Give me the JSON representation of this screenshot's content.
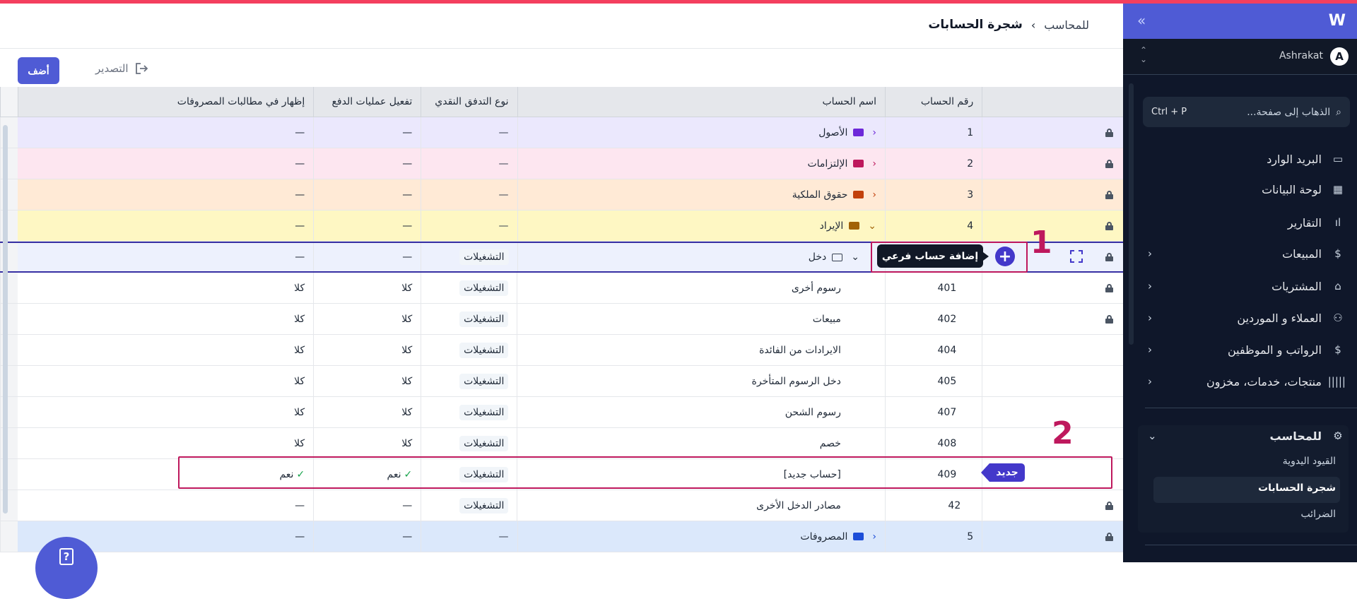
{
  "header": {
    "breadcrumb_parent": "للمحاسب",
    "breadcrumb_separator": "›",
    "page_title": "شجرة الحسابات"
  },
  "toolbar": {
    "add_label": "أضف",
    "export_label": "التصدير",
    "export_icon": "export-icon"
  },
  "table": {
    "columns": [
      "",
      "رقم الحساب",
      "اسم الحساب",
      "نوع التدفق النقدي",
      "تفعيل عمليات الدفع",
      "إظهار في مطالبات المصروفات"
    ],
    "rows": [
      {
        "locked": true,
        "number": "1",
        "name": "الأصول",
        "level": "parent",
        "expanded": false,
        "folder_color": "#6d28d9",
        "bg": "#ebe8fd",
        "flow": "—",
        "payments": "—",
        "expense": "—"
      },
      {
        "locked": true,
        "number": "2",
        "name": "الإلتزامات",
        "level": "parent",
        "expanded": false,
        "folder_color": "#be185d",
        "bg": "#fde6f0",
        "flow": "—",
        "payments": "—",
        "expense": "—"
      },
      {
        "locked": true,
        "number": "3",
        "name": "حقوق الملكية",
        "level": "parent",
        "expanded": false,
        "folder_color": "#c2410c",
        "bg": "#ffead6",
        "flow": "—",
        "payments": "—",
        "expense": "—"
      },
      {
        "locked": true,
        "number": "4",
        "name": "الإيراد",
        "level": "parent",
        "expanded": true,
        "folder_color": "#a16207",
        "bg": "#fef7c3",
        "flow": "—",
        "payments": "—",
        "expense": "—"
      },
      {
        "locked": true,
        "number": "",
        "name": "دخل",
        "level": "group",
        "expanded": true,
        "folder_color": "#374151",
        "bg": "#edf1fd",
        "flow": "التشغيلات",
        "payments": "—",
        "expense": "—",
        "selected": true
      },
      {
        "locked": true,
        "number": "401",
        "name": "رسوم أخرى",
        "level": "child",
        "flow": "التشغيلات",
        "payments": "كلا",
        "expense": "كلا"
      },
      {
        "locked": true,
        "number": "402",
        "name": "مبيعات",
        "level": "child",
        "flow": "التشغيلات",
        "payments": "كلا",
        "expense": "كلا"
      },
      {
        "locked": false,
        "number": "404",
        "name": "الايرادات من الفائدة",
        "level": "child",
        "flow": "التشغيلات",
        "payments": "كلا",
        "expense": "كلا"
      },
      {
        "locked": false,
        "number": "405",
        "name": "دخل الرسوم المتأخرة",
        "level": "child",
        "flow": "التشغيلات",
        "payments": "كلا",
        "expense": "كلا"
      },
      {
        "locked": false,
        "number": "407",
        "name": "رسوم الشحن",
        "level": "child",
        "flow": "التشغيلات",
        "payments": "كلا",
        "expense": "كلا"
      },
      {
        "locked": false,
        "number": "408",
        "name": "خصم",
        "level": "child",
        "flow": "التشغيلات",
        "payments": "كلا",
        "expense": "كلا"
      },
      {
        "locked": false,
        "number": "409",
        "name": "[حساب جديد]",
        "level": "child",
        "flow": "التشغيلات",
        "payments": "نعم",
        "expense": "نعم",
        "checked": true,
        "badge": "جديد"
      },
      {
        "locked": true,
        "number": "42",
        "name": "مصادر الدخل الأخرى",
        "level": "child",
        "flow": "التشغيلات",
        "payments": "—",
        "expense": "—"
      },
      {
        "locked": true,
        "number": "5",
        "name": "المصروفات",
        "level": "parent",
        "expanded": false,
        "folder_color": "#1d4ed8",
        "bg": "#dbe8fb",
        "flow": "—",
        "payments": "—",
        "expense": "—"
      }
    ],
    "add_subaccount_tooltip": "إضافة حساب فرعي",
    "check_mark": "✓"
  },
  "annotations": {
    "one": "1",
    "two": "2",
    "color": "#be185d"
  },
  "help": {
    "icon": "?"
  },
  "sidebar": {
    "collapse_icon": "»",
    "logo": "W",
    "user": {
      "initial": "A",
      "name": "Ashrakat"
    },
    "search": {
      "placeholder": "الذهاب إلى صفحة...",
      "shortcut": "Ctrl + P"
    },
    "items": [
      {
        "label": "البريد الوارد",
        "icon": "inbox-icon",
        "glyph": "▭",
        "arrow": false
      },
      {
        "label": "لوحة البيانات",
        "icon": "dashboard-icon",
        "glyph": "▦",
        "arrow": false
      },
      {
        "label": "التقارير",
        "icon": "chart-icon",
        "glyph": "ıl",
        "arrow": false
      },
      {
        "label": "المبيعات",
        "icon": "dollar-icon",
        "glyph": "$",
        "arrow": true
      },
      {
        "label": "المشتريات",
        "icon": "bag-icon",
        "glyph": "⌂",
        "arrow": true
      },
      {
        "label": "العملاء و الموردين",
        "icon": "users-icon",
        "glyph": "⚇",
        "arrow": true
      },
      {
        "label": "الرواتب و الموظفين",
        "icon": "payroll-icon",
        "glyph": "$",
        "arrow": true
      },
      {
        "label": "منتجات، خدمات، مخزون",
        "icon": "barcode-icon",
        "glyph": "|||||",
        "arrow": true
      }
    ],
    "accountant": {
      "label": "للمحاسب",
      "icon": "accountant-icon",
      "sub": [
        "القيود اليدوية",
        "شجرة الحسابات",
        "الضرائب"
      ],
      "active": "شجرة الحسابات"
    }
  },
  "colors": {
    "accent": "#4f5bd5",
    "sidebar_bg": "#0f172a",
    "top_bar": "#f43f5e"
  }
}
